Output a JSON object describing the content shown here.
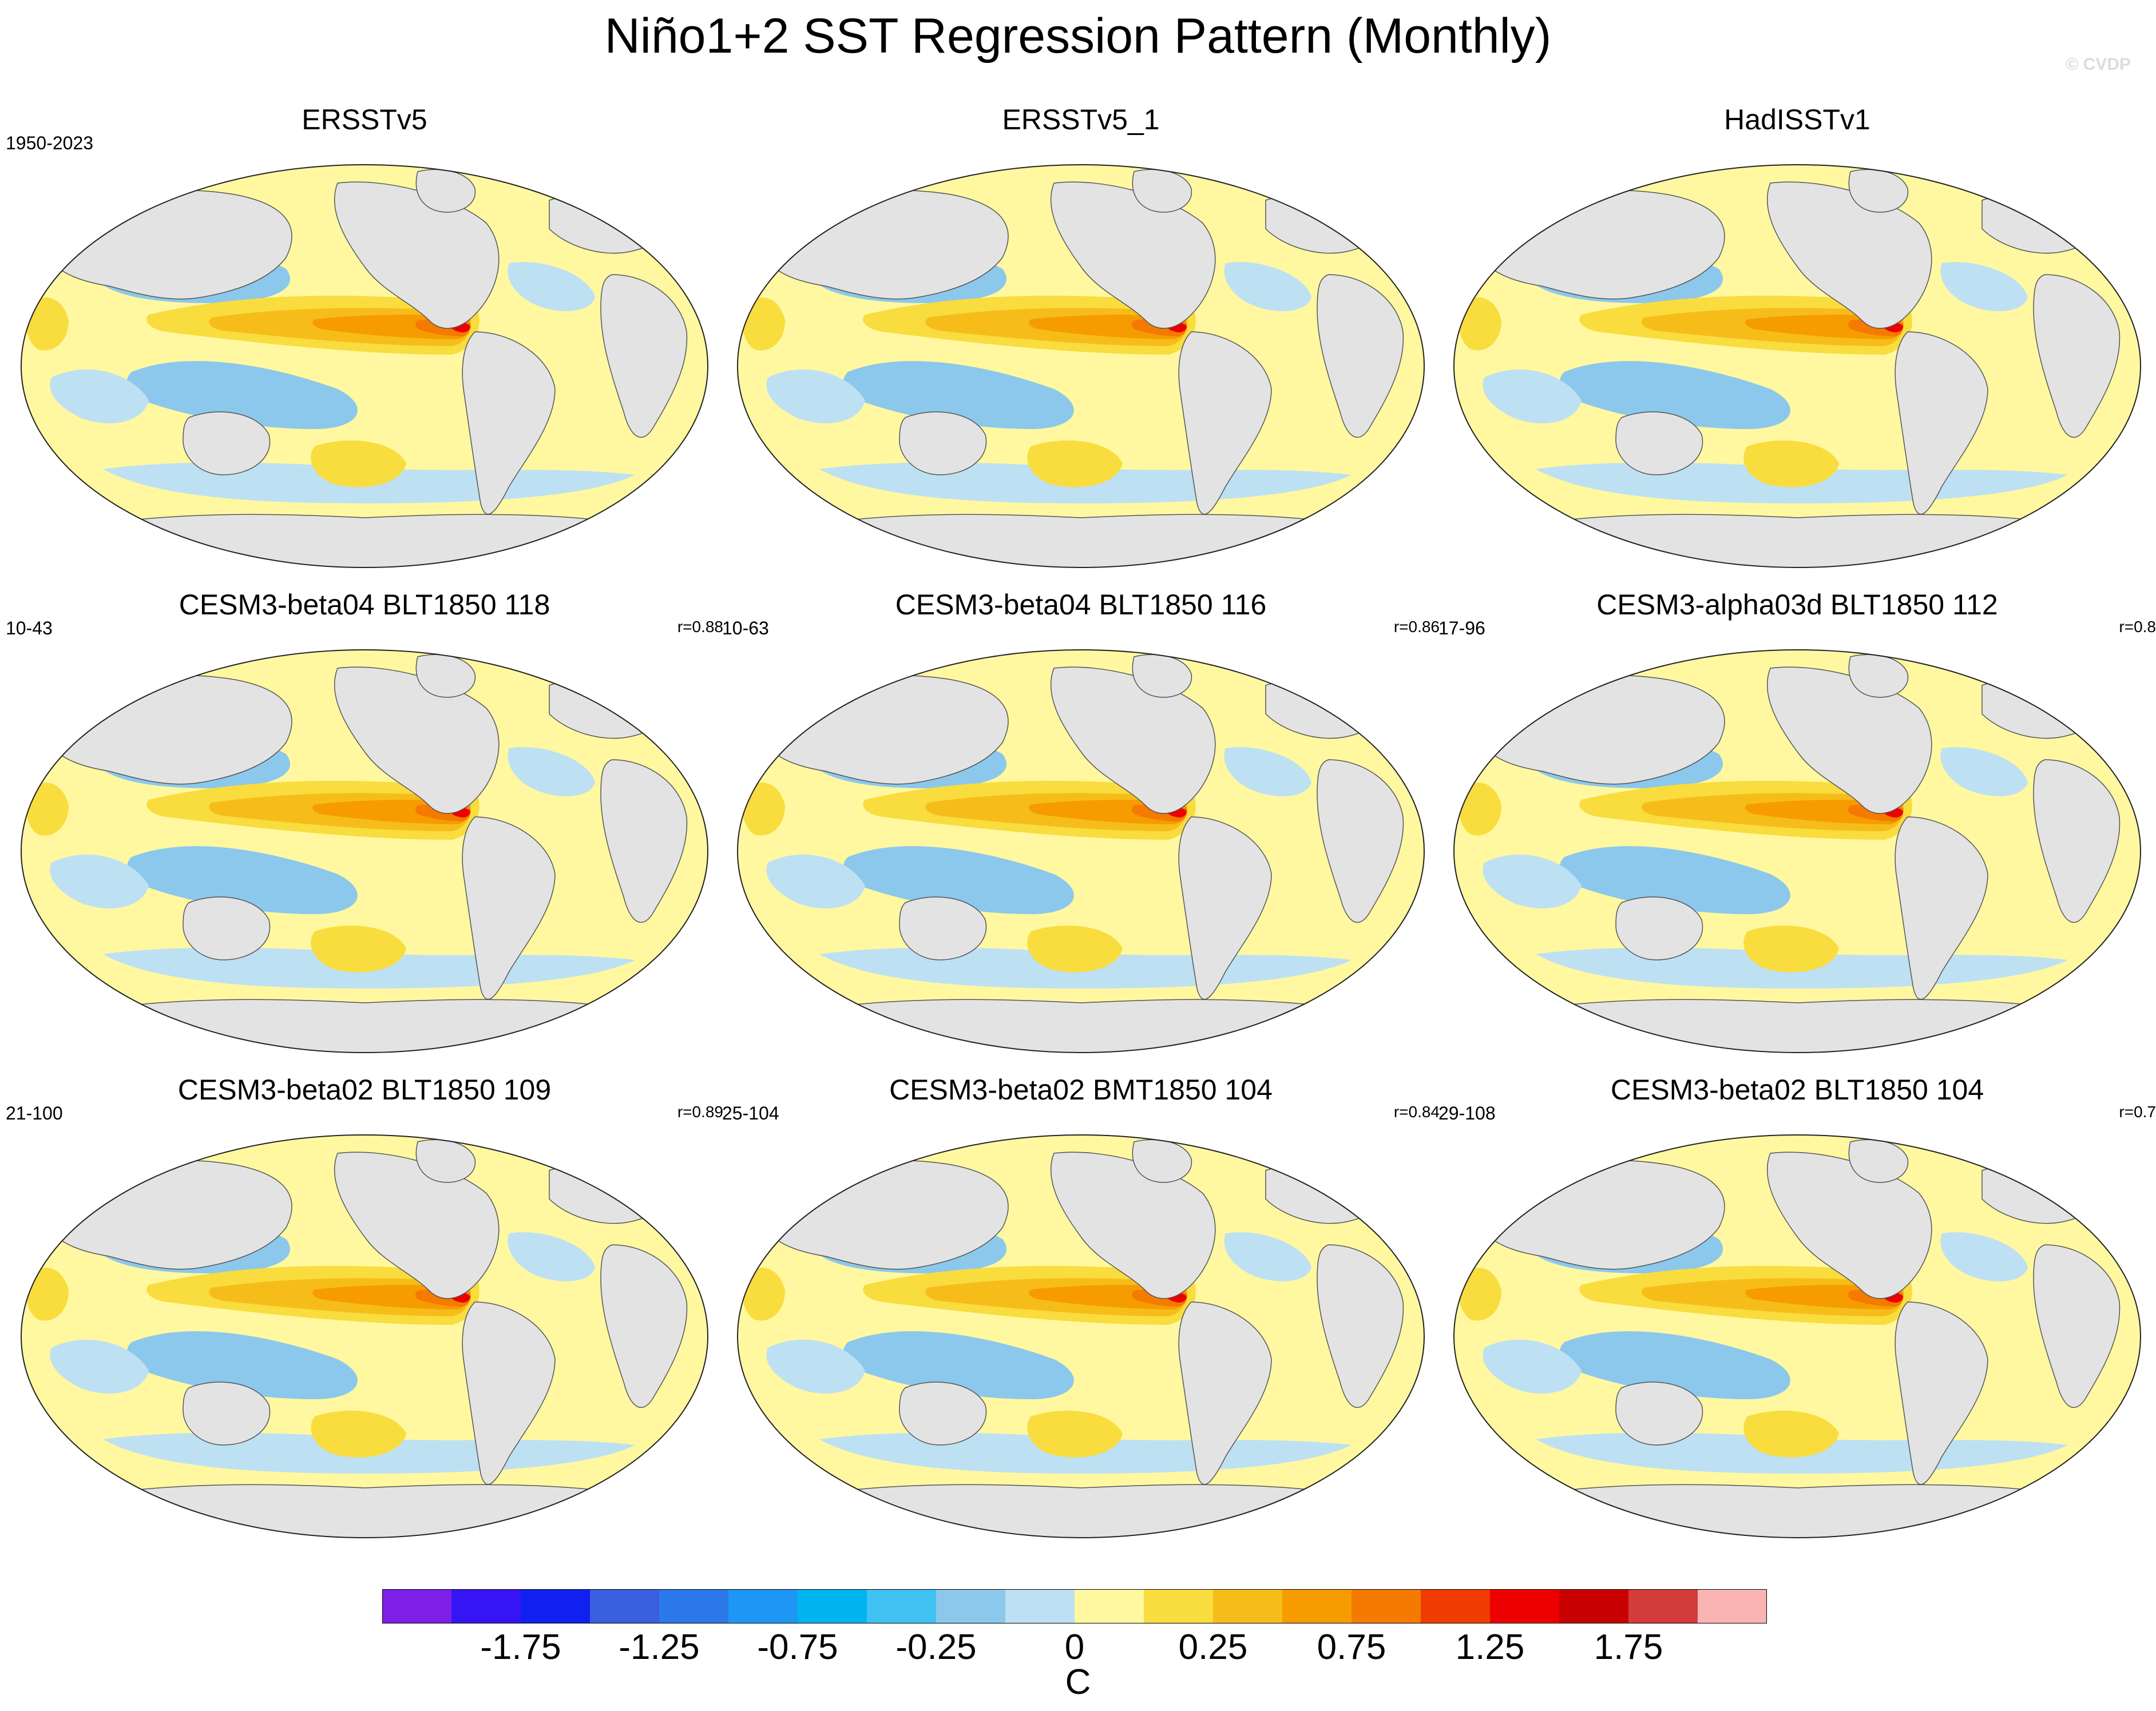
{
  "title": "Niño1+2 SST Regression Pattern (Monthly)",
  "credit": "© CVDP",
  "panels": [
    {
      "name": "ERSSTv5",
      "years": "1950-2023",
      "corr": ""
    },
    {
      "name": "ERSSTv5_1",
      "years": "",
      "corr": ""
    },
    {
      "name": "HadISSTv1",
      "years": "",
      "corr": ""
    },
    {
      "name": "CESM3-beta04 BLT1850 118",
      "years": "10-43",
      "corr": "r=0.88"
    },
    {
      "name": "CESM3-beta04 BLT1850 116",
      "years": "10-63",
      "corr": "r=0.86"
    },
    {
      "name": "CESM3-alpha03d BLT1850 112",
      "years": "17-96",
      "corr": "r=0.8"
    },
    {
      "name": "CESM3-beta02 BLT1850 109",
      "years": "21-100",
      "corr": "r=0.89"
    },
    {
      "name": "CESM3-beta02 BMT1850 104",
      "years": "25-104",
      "corr": "r=0.84"
    },
    {
      "name": "CESM3-beta02 BLT1850 104",
      "years": "29-108",
      "corr": "r=0.7"
    }
  ],
  "colorbar": {
    "colors": [
      "#7d1fe6",
      "#3714f4",
      "#1020f0",
      "#3a5fde",
      "#2a78ea",
      "#1e96f5",
      "#00b4f0",
      "#3fc2f2",
      "#8cc8ec",
      "#bde0f3",
      "#fff8a0",
      "#f9dc3e",
      "#f6bd1a",
      "#f69c00",
      "#f57a00",
      "#f03c00",
      "#ee0000",
      "#c80000",
      "#d43b3b",
      "#fab4b4"
    ],
    "labels": [
      "-1.75",
      "-1.25",
      "-0.75",
      "-0.25",
      "0",
      "0.25",
      "0.75",
      "1.25",
      "1.75"
    ],
    "units": "C"
  },
  "map_colors": {
    "land": "#e3e3e3",
    "ocean_neutral": "#fff8a0",
    "cool": "#bde0f3",
    "cooler": "#8cc8ec",
    "coolest": "#3fc2f2",
    "warm": "#f9dc3e",
    "warmer": "#f6bd1a",
    "hot": "#f69c00",
    "hotter": "#f57a00",
    "hottest": "#ee0000"
  }
}
